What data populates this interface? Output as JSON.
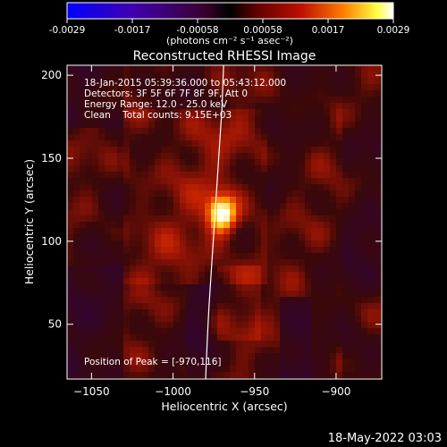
{
  "colorbar": {
    "tick_labels": [
      "-0.0029",
      "-0.0017",
      "-0.00058",
      "0.00058",
      "0.0017",
      "0.0029"
    ],
    "unit_text": "(photons cm⁻² s⁻¹ asec⁻²)",
    "range": [
      -0.0029,
      0.0029
    ]
  },
  "chart_data": {
    "type": "heatmap",
    "title": "Reconstructed RHESSI Image",
    "xlabel": "Heliocentric X (arcsec)",
    "ylabel": "Heliocentric Y (arcsec)",
    "xlim": [
      -1065,
      -872
    ],
    "ylim": [
      17,
      206
    ],
    "x_ticks": [
      -1050,
      -1000,
      -950,
      -900
    ],
    "y_ticks": [
      50,
      100,
      150,
      200
    ],
    "x_tick_labels": [
      "−1050",
      "−1000",
      "−950",
      "−900"
    ],
    "y_tick_labels": [
      "50",
      "100",
      "150",
      "200"
    ],
    "peak": {
      "x": -970,
      "y": 116,
      "value": 0.0029
    },
    "limb_curve": [
      [
        -969,
        206
      ],
      [
        -970,
        180
      ],
      [
        -972,
        150
      ],
      [
        -974,
        120
      ],
      [
        -976,
        90
      ],
      [
        -978,
        60
      ],
      [
        -979,
        40
      ],
      [
        -980,
        17
      ]
    ],
    "annotations": [
      "18-Jan-2015 05:39:36.000 to 05:43:12.000",
      "Detectors: 3F 5F 6F 7F 8F 9F, Att 0",
      "Energy Range: 12.0 - 25.0 keV",
      "Clean    Total counts: 9.15E+03"
    ],
    "peak_label": "Position of Peak = [-970,116]",
    "colormap": "red-temperature"
  },
  "footer_date": "18-May-2022 03:03"
}
